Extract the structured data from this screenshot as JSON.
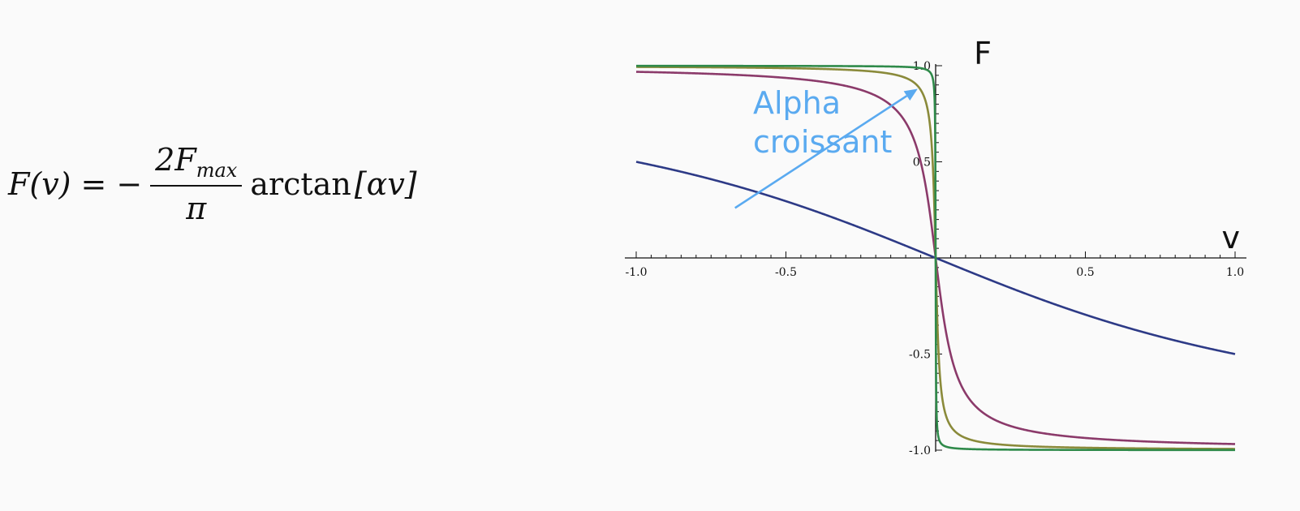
{
  "formula": {
    "lhs": "F(v)",
    "eq": "=",
    "minus": "−",
    "numerator_coeff": "2F",
    "numerator_sub": "max",
    "denominator": "π",
    "function": "arctan",
    "argument": "[αv]"
  },
  "chart_data": {
    "type": "line",
    "xlabel": "v",
    "ylabel": "F",
    "xlim": [
      -1.0,
      1.0
    ],
    "ylim": [
      -1.0,
      1.0
    ],
    "x_ticks": [
      "-1.0",
      "-0.5",
      "0.5",
      "1.0"
    ],
    "y_ticks": [
      "1.0",
      "0.5",
      "-0.5",
      "-1.0"
    ],
    "grid": false,
    "annotation": {
      "line1": "Alpha",
      "line2": "croissant",
      "color": "#5aaaf0",
      "arrow_from": {
        "x": -0.67,
        "y": 0.26
      },
      "arrow_to": {
        "x": -0.06,
        "y": 0.88
      }
    },
    "series": [
      {
        "color": "#2d3a86",
        "alpha": 1.0,
        "x": [
          -1.0,
          -0.75,
          -0.5,
          -0.25,
          0.0,
          0.25,
          0.5,
          0.75,
          1.0
        ],
        "y": [
          0.5,
          0.41,
          0.295,
          0.156,
          0.0,
          -0.156,
          -0.295,
          -0.41,
          -0.5
        ]
      },
      {
        "color": "#8b3a6a",
        "alpha": 20.0,
        "x": [
          -1.0,
          -0.5,
          -0.2,
          -0.1,
          -0.05,
          0.0,
          0.05,
          0.1,
          0.2,
          0.5,
          1.0
        ],
        "y": [
          0.968,
          0.937,
          0.844,
          0.705,
          0.5,
          0.0,
          -0.5,
          -0.705,
          -0.844,
          -0.937,
          -0.968
        ]
      },
      {
        "color": "#8a8a3a",
        "alpha": 100.0,
        "x": [
          -1.0,
          -0.5,
          -0.1,
          -0.05,
          -0.02,
          -0.01,
          0.0,
          0.01,
          0.02,
          0.05,
          0.1,
          0.5,
          1.0
        ],
        "y": [
          0.994,
          0.987,
          0.937,
          0.874,
          0.705,
          0.5,
          0.0,
          -0.5,
          -0.705,
          -0.874,
          -0.937,
          -0.987,
          -0.994
        ]
      },
      {
        "color": "#2f8a4a",
        "alpha": 1000.0,
        "x": [
          -1.0,
          -0.1,
          -0.01,
          -0.005,
          -0.002,
          -0.001,
          0.0,
          0.001,
          0.002,
          0.005,
          0.01,
          0.1,
          1.0
        ],
        "y": [
          0.999,
          0.994,
          0.937,
          0.874,
          0.705,
          0.5,
          0.0,
          -0.5,
          -0.705,
          -0.874,
          -0.937,
          -0.994,
          -0.999
        ]
      }
    ]
  }
}
